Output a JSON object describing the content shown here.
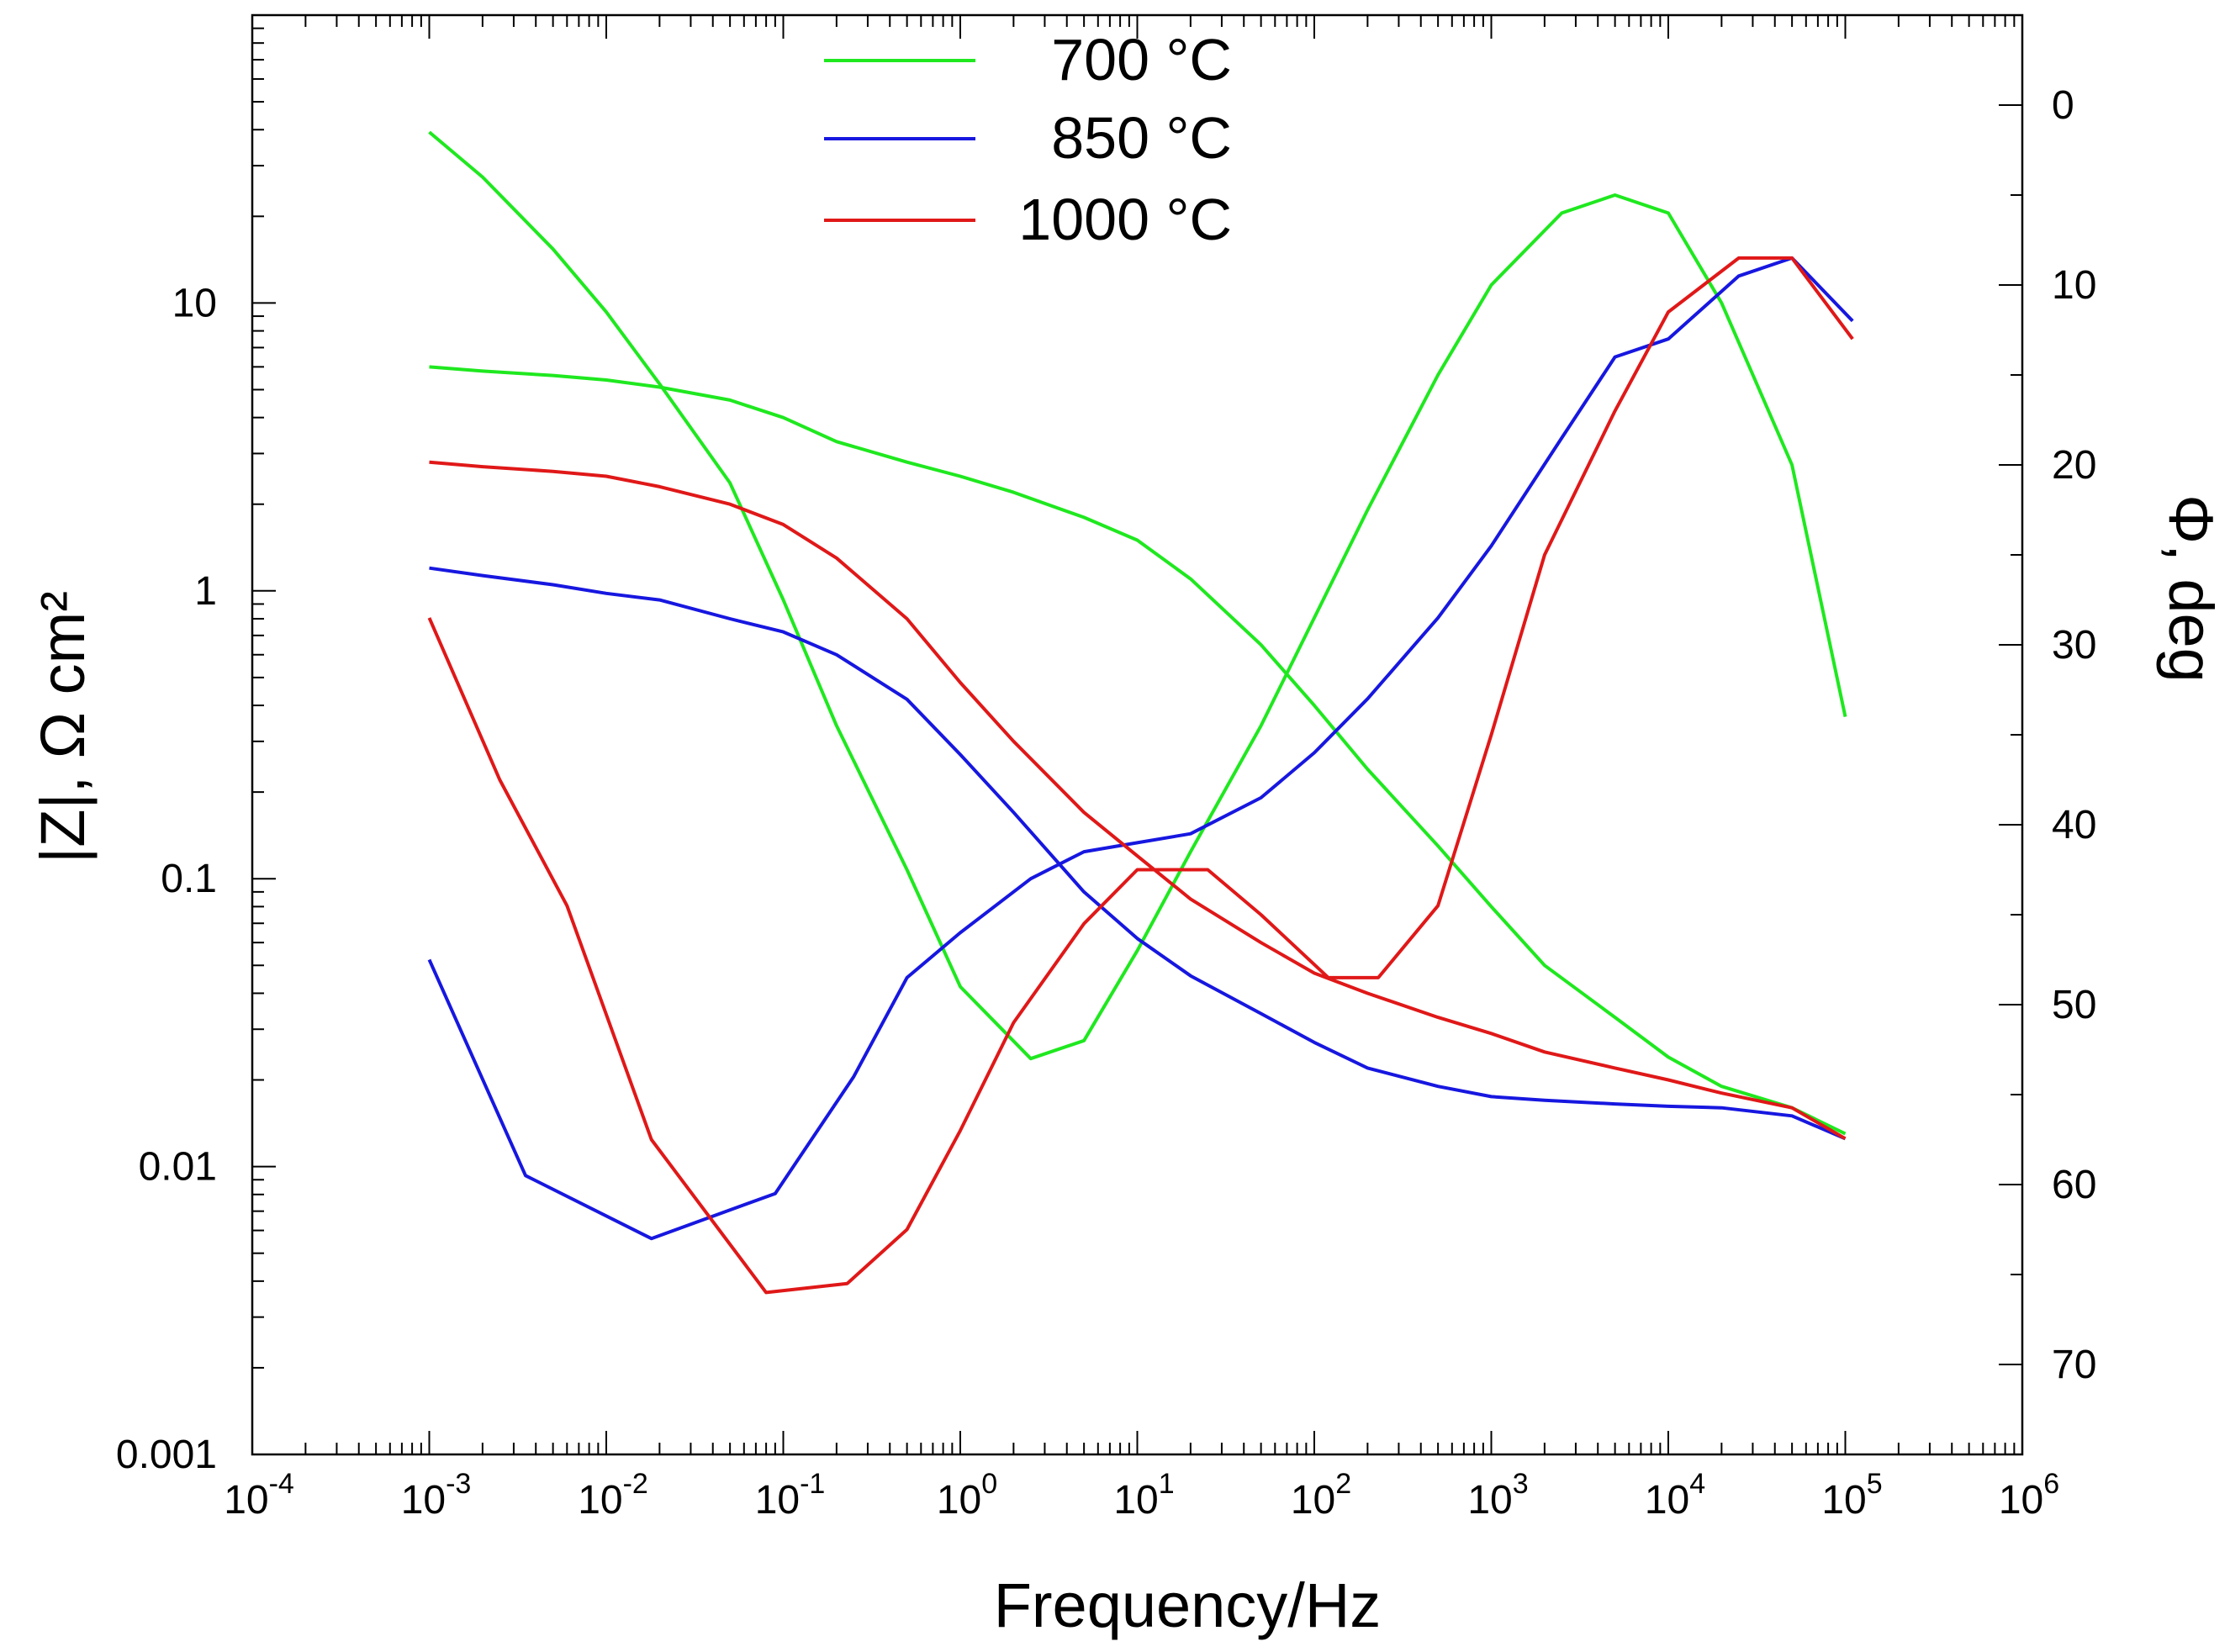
{
  "chart_data": {
    "type": "line",
    "title": "",
    "xlabel": "Frequency/Hz",
    "ylabel_left": "|Z|,  Ω cm²",
    "ylabel_right": "Φ, deg",
    "x_scale": "log",
    "xlim": [
      0.0001,
      1000000
    ],
    "y_left_scale": "log",
    "y_left_lim": [
      0.001,
      100
    ],
    "y_right_lim": [
      75,
      -5
    ],
    "x_ticks": [
      {
        "base": "10",
        "exp": "-4"
      },
      {
        "base": "10",
        "exp": "-3"
      },
      {
        "base": "10",
        "exp": "-2"
      },
      {
        "base": "10",
        "exp": "-1"
      },
      {
        "base": "10",
        "exp": "0"
      },
      {
        "base": "10",
        "exp": "1"
      },
      {
        "base": "10",
        "exp": "2"
      },
      {
        "base": "10",
        "exp": "3"
      },
      {
        "base": "10",
        "exp": "4"
      },
      {
        "base": "10",
        "exp": "5"
      },
      {
        "base": "10",
        "exp": "6"
      }
    ],
    "y_left_ticks": [
      "0.001",
      "0.01",
      "0.1",
      "1",
      "10"
    ],
    "y_right_ticks": [
      "0",
      "10",
      "20",
      "30",
      "40",
      "50",
      "60",
      "70"
    ],
    "legend": {
      "position": "top-center",
      "entries": [
        "700 °C",
        "850 °C",
        "1000 °C"
      ]
    },
    "colors": {
      "700": "#1fe81f",
      "850": "#1717e0",
      "1000": "#e01818"
    },
    "series": [
      {
        "name": "700 °C |Z|",
        "color": "#1fe81f",
        "axis": "left",
        "x": [
          0.001,
          0.002,
          0.005,
          0.01,
          0.02,
          0.05,
          0.1,
          0.2,
          0.5,
          1,
          2,
          5,
          10,
          20,
          50,
          100,
          200,
          500,
          1000,
          2000,
          5000,
          10000,
          20000,
          50000,
          100000
        ],
        "y": [
          6.0,
          5.8,
          5.6,
          5.4,
          5.1,
          4.6,
          4.0,
          3.3,
          2.8,
          2.5,
          2.2,
          1.8,
          1.5,
          1.1,
          0.65,
          0.4,
          0.24,
          0.13,
          0.08,
          0.05,
          0.033,
          0.024,
          0.019,
          0.016,
          0.013
        ]
      },
      {
        "name": "700 °C Φ",
        "color": "#1fe81f",
        "axis": "right",
        "x": [
          0.001,
          0.002,
          0.005,
          0.01,
          0.02,
          0.05,
          0.1,
          0.2,
          0.5,
          1,
          2.5,
          5,
          10,
          20,
          50,
          100,
          200,
          500,
          1000,
          2500,
          5000,
          10000,
          20000,
          50000,
          100000
        ],
        "y": [
          1.5,
          4.0,
          8.0,
          11.5,
          15.5,
          21.0,
          27.5,
          34.5,
          42.5,
          49.0,
          53.0,
          52.0,
          47.0,
          41.5,
          34.5,
          28.5,
          22.5,
          15.0,
          10.0,
          6.0,
          5.0,
          6.0,
          11.0,
          20.0,
          34.0
        ]
      },
      {
        "name": "850 °C |Z|",
        "color": "#1717e0",
        "axis": "left",
        "x": [
          0.001,
          0.002,
          0.005,
          0.01,
          0.02,
          0.05,
          0.1,
          0.2,
          0.5,
          1,
          2,
          5,
          10,
          20,
          50,
          100,
          200,
          500,
          1000,
          2000,
          5000,
          10000,
          20000,
          50000,
          100000
        ],
        "y": [
          1.2,
          1.13,
          1.05,
          0.98,
          0.93,
          0.8,
          0.72,
          0.6,
          0.42,
          0.27,
          0.17,
          0.09,
          0.062,
          0.046,
          0.034,
          0.027,
          0.022,
          0.019,
          0.0175,
          0.017,
          0.0165,
          0.0162,
          0.016,
          0.015,
          0.0125
        ]
      },
      {
        "name": "850 °C Φ",
        "color": "#1717e0",
        "axis": "right",
        "x": [
          0.001,
          0.0035,
          0.018,
          0.09,
          0.25,
          0.5,
          1,
          2.5,
          5,
          10,
          20,
          50,
          100,
          200,
          500,
          1000,
          2500,
          5000,
          10000,
          25000,
          50000,
          110000
        ],
        "y": [
          47.5,
          59.5,
          63.0,
          60.5,
          54.0,
          48.5,
          46.0,
          43.0,
          41.5,
          41.0,
          40.5,
          38.5,
          36.0,
          33.0,
          28.5,
          24.5,
          18.5,
          14.0,
          13.0,
          9.5,
          8.5,
          12.0
        ]
      },
      {
        "name": "1000 °C |Z|",
        "color": "#e01818",
        "axis": "left",
        "x": [
          0.001,
          0.002,
          0.005,
          0.01,
          0.02,
          0.05,
          0.1,
          0.2,
          0.5,
          1,
          2,
          5,
          10,
          20,
          50,
          100,
          200,
          500,
          1000,
          2000,
          5000,
          10000,
          20000,
          50000,
          100000
        ],
        "y": [
          2.8,
          2.7,
          2.6,
          2.5,
          2.3,
          2.0,
          1.7,
          1.3,
          0.8,
          0.48,
          0.3,
          0.17,
          0.12,
          0.085,
          0.06,
          0.047,
          0.04,
          0.033,
          0.029,
          0.025,
          0.022,
          0.02,
          0.018,
          0.016,
          0.0125
        ]
      },
      {
        "name": "1000 °C Φ",
        "color": "#e01818",
        "axis": "right",
        "x": [
          0.001,
          0.0025,
          0.006,
          0.018,
          0.08,
          0.23,
          0.5,
          1,
          2,
          5,
          10,
          25,
          50,
          120,
          230,
          500,
          1000,
          2000,
          5000,
          10000,
          25000,
          50000,
          110000
        ],
        "y": [
          28.5,
          37.5,
          44.5,
          57.5,
          66.0,
          65.5,
          62.5,
          57.0,
          51.0,
          45.5,
          42.5,
          42.5,
          45.0,
          48.5,
          48.5,
          44.5,
          35.0,
          25.0,
          17.0,
          11.5,
          8.5,
          8.5,
          13.0
        ]
      }
    ]
  }
}
